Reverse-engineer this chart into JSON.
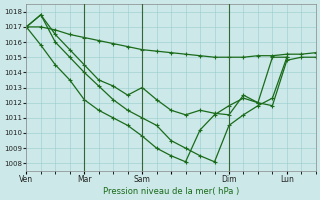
{
  "bg_color": "#cce8e8",
  "grid_color": "#99cccc",
  "line_color": "#1a6b1a",
  "xlabel": "Pression niveau de la mer( hPa )",
  "ylim": [
    1007.5,
    1018.5
  ],
  "yticks": [
    1008,
    1009,
    1010,
    1011,
    1012,
    1013,
    1014,
    1015,
    1016,
    1017,
    1018
  ],
  "xlim": [
    0,
    120
  ],
  "xtick_positions": [
    0,
    24,
    48,
    60,
    84,
    108
  ],
  "xtick_labels": [
    "Ven",
    "Mar",
    "Sam",
    "",
    "Dim",
    "Lun"
  ],
  "day_lines": [
    24,
    48,
    84
  ],
  "series1_x": [
    0,
    6,
    12,
    18,
    24,
    30,
    36,
    42,
    48,
    54,
    60,
    66,
    72,
    78,
    84,
    90,
    96,
    102,
    108,
    114,
    120
  ],
  "series1_y": [
    1017.0,
    1017.0,
    1016.8,
    1016.5,
    1016.3,
    1016.1,
    1015.9,
    1015.7,
    1015.5,
    1015.4,
    1015.3,
    1015.2,
    1015.1,
    1015.0,
    1015.0,
    1015.0,
    1015.1,
    1015.1,
    1015.2,
    1015.2,
    1015.3
  ],
  "series2_x": [
    0,
    6,
    12,
    18,
    24,
    30,
    36,
    42,
    48,
    54,
    60,
    66,
    72,
    78,
    84,
    90,
    96,
    102,
    108,
    114,
    120
  ],
  "series2_y": [
    1017.0,
    1017.8,
    1016.5,
    1015.5,
    1014.5,
    1013.5,
    1013.1,
    1012.5,
    1013.0,
    1012.2,
    1011.5,
    1011.2,
    1011.5,
    1011.3,
    1011.2,
    1012.5,
    1012.0,
    1011.8,
    1014.8,
    1015.0,
    1015.0
  ],
  "series3_x": [
    0,
    6,
    12,
    18,
    24,
    30,
    36,
    42,
    48,
    54,
    60,
    66,
    72,
    78,
    84,
    90,
    96,
    102,
    108
  ],
  "series3_y": [
    1017.0,
    1017.8,
    1016.0,
    1015.0,
    1014.0,
    1013.1,
    1012.2,
    1011.5,
    1011.0,
    1010.5,
    1009.5,
    1009.0,
    1008.5,
    1008.1,
    1010.5,
    1011.2,
    1011.8,
    1012.3,
    1015.0
  ],
  "series4_x": [
    0,
    6,
    12,
    18,
    24,
    30,
    36,
    42,
    48,
    54,
    60,
    66,
    72,
    78,
    84,
    90,
    96,
    102,
    108
  ],
  "series4_y": [
    1017.0,
    1015.8,
    1014.5,
    1013.5,
    1012.2,
    1011.5,
    1011.0,
    1010.5,
    1009.8,
    1009.0,
    1008.5,
    1008.1,
    1010.2,
    1011.2,
    1011.8,
    1012.3,
    1012.0,
    1015.0,
    1015.0
  ]
}
